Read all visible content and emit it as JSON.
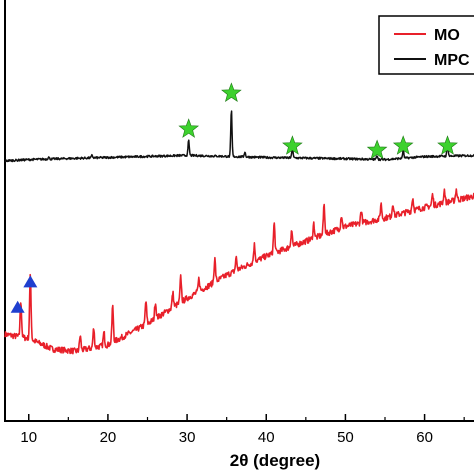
{
  "chart_data": {
    "type": "line",
    "title": "",
    "xlabel": "2θ (degree)",
    "ylabel": "",
    "xlim": [
      7,
      67
    ],
    "ylim": [
      0,
      100
    ],
    "x_ticks": [
      10,
      20,
      30,
      40,
      50,
      60
    ],
    "x_tick_labels": [
      "10",
      "20",
      "30",
      "40",
      "50",
      "60"
    ],
    "grid": false,
    "legend_position": "top-right",
    "series": [
      {
        "name": "MO",
        "color": "#e8202a",
        "baseline": [
          [
            7,
            20.5
          ],
          [
            10,
            19.5
          ],
          [
            13,
            17.0
          ],
          [
            16,
            16.5
          ],
          [
            20,
            18.0
          ],
          [
            25,
            23.0
          ],
          [
            30,
            29.0
          ],
          [
            35,
            34.5
          ],
          [
            40,
            39.0
          ],
          [
            45,
            42.5
          ],
          [
            50,
            46.0
          ],
          [
            55,
            48.0
          ],
          [
            60,
            50.5
          ],
          [
            67,
            53.5
          ]
        ],
        "peaks": [
          [
            9.0,
            8.5
          ],
          [
            10.2,
            15.0
          ],
          [
            16.5,
            3.5
          ],
          [
            18.2,
            4.5
          ],
          [
            19.5,
            3.0
          ],
          [
            20.6,
            8.5
          ],
          [
            24.8,
            5.5
          ],
          [
            26.0,
            4.0
          ],
          [
            28.2,
            3.5
          ],
          [
            29.2,
            6.0
          ],
          [
            31.5,
            3.0
          ],
          [
            33.5,
            5.5
          ],
          [
            36.2,
            3.0
          ],
          [
            38.5,
            4.0
          ],
          [
            41.0,
            7.0
          ],
          [
            43.2,
            4.0
          ],
          [
            46.0,
            3.5
          ],
          [
            47.3,
            7.0
          ],
          [
            49.5,
            3.0
          ],
          [
            52.0,
            3.0
          ],
          [
            54.5,
            3.5
          ],
          [
            56.0,
            3.0
          ],
          [
            58.5,
            3.0
          ],
          [
            61.0,
            2.5
          ],
          [
            62.5,
            3.0
          ],
          [
            64.0,
            2.5
          ]
        ]
      },
      {
        "name": "MPC",
        "color": "#111111",
        "baseline": [
          [
            7,
            61.5
          ],
          [
            10,
            61.8
          ],
          [
            20,
            62.3
          ],
          [
            30,
            62.8
          ],
          [
            40,
            62.3
          ],
          [
            50,
            62.0
          ],
          [
            55,
            61.8
          ],
          [
            60,
            62.5
          ],
          [
            67,
            62.8
          ]
        ],
        "peaks": [
          [
            12.5,
            0.5
          ],
          [
            18.0,
            0.6
          ],
          [
            30.2,
            3.5
          ],
          [
            35.6,
            11.0
          ],
          [
            37.3,
            1.2
          ],
          [
            43.3,
            2.3
          ],
          [
            54.0,
            1.0
          ],
          [
            57.3,
            2.0
          ],
          [
            62.9,
            3.0
          ]
        ]
      }
    ],
    "annotations": [
      {
        "symbol": "triangle",
        "color": "#1f3fcf",
        "points": [
          [
            8.6,
            27.0
          ],
          [
            10.2,
            33.0
          ]
        ]
      },
      {
        "symbol": "star",
        "color": "#3dd12e",
        "points": [
          [
            30.2,
            69.0
          ],
          [
            35.6,
            77.5
          ],
          [
            43.3,
            65.0
          ],
          [
            54.0,
            64.0
          ],
          [
            57.3,
            65.0
          ],
          [
            62.9,
            65.0
          ]
        ]
      }
    ]
  },
  "legend": {
    "items": [
      {
        "label": "MO",
        "color": "#e8202a"
      },
      {
        "label": "MPC",
        "color": "#111111"
      }
    ]
  }
}
